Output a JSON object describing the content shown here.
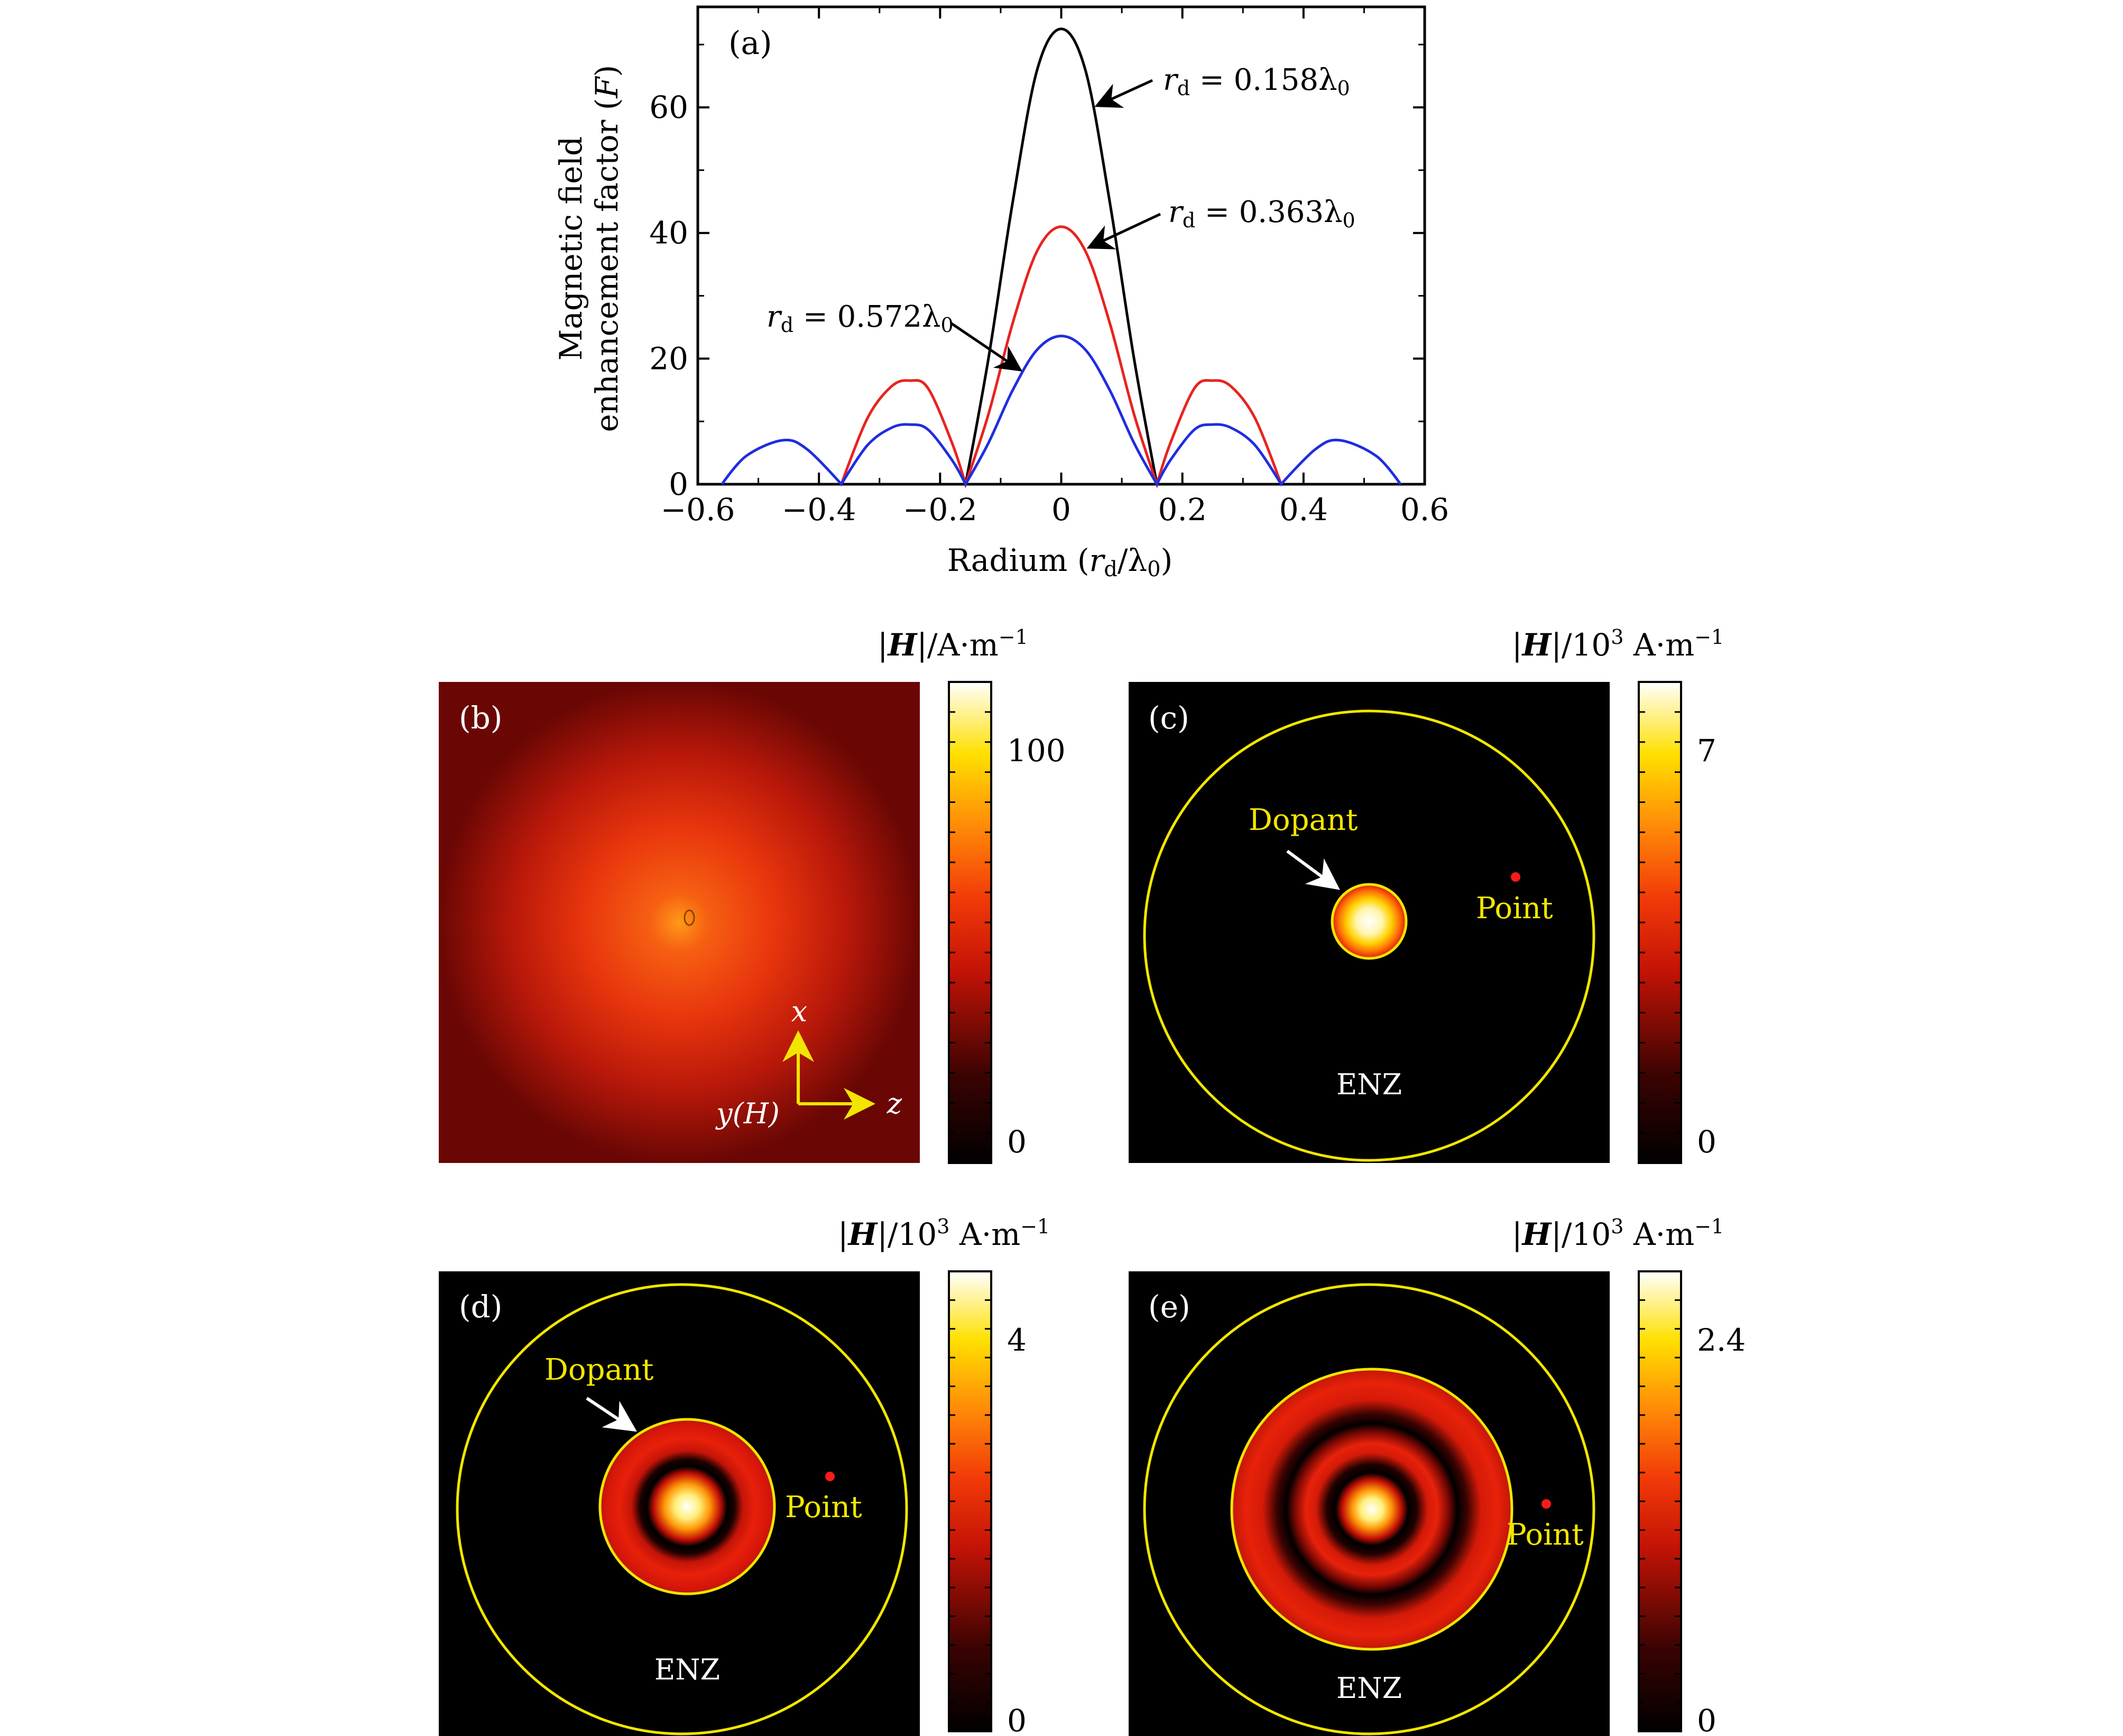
{
  "chart_data": [
    {
      "type": "line",
      "panel_label": "(a)",
      "xlabel": "Radium (r_d/λ0)",
      "ylabel_lines": [
        "Magnetic field",
        "enhancement factor (F)"
      ],
      "xlim": [
        -0.6,
        0.6
      ],
      "ylim": [
        0,
        76
      ],
      "xticks": [
        -0.6,
        -0.4,
        -0.2,
        0,
        0.2,
        0.4,
        0.6
      ],
      "xtick_labels": [
        "−0.6",
        "−0.4",
        "−0.2",
        "0",
        "0.2",
        "0.4",
        "0.6"
      ],
      "yticks": [
        0,
        20,
        40,
        60
      ],
      "ytick_labels": [
        "0",
        "20",
        "40",
        "60"
      ],
      "grid": false,
      "series": [
        {
          "name": "r_d = 0.158λ0",
          "color": "#000000",
          "x": [
            -0.158,
            -0.12,
            -0.08,
            -0.04,
            0,
            0.04,
            0.08,
            0.12,
            0.158
          ],
          "y": [
            0,
            20.1,
            45.0,
            65.9,
            72.5,
            65.9,
            45.0,
            20.1,
            0
          ]
        },
        {
          "name": "r_d = 0.363λ0",
          "color": "#e8231f",
          "x": [
            -0.363,
            -0.32,
            -0.28,
            -0.25,
            -0.22,
            -0.18,
            -0.158,
            -0.12,
            -0.08,
            -0.04,
            0,
            0.04,
            0.08,
            0.12,
            0.158,
            0.18,
            0.22,
            0.25,
            0.28,
            0.32,
            0.363
          ],
          "y": [
            0,
            10.5,
            15.6,
            16.5,
            15.3,
            6.5,
            0,
            11.2,
            25.7,
            37.1,
            41.0,
            37.1,
            25.7,
            11.2,
            0,
            6.5,
            15.3,
            16.5,
            15.6,
            10.5,
            0
          ]
        },
        {
          "name": "r_d = 0.572λ0",
          "color": "#1f2de0",
          "x": [
            -0.56,
            -0.52,
            -0.46,
            -0.42,
            -0.363,
            -0.32,
            -0.28,
            -0.25,
            -0.22,
            -0.18,
            -0.158,
            -0.12,
            -0.08,
            -0.04,
            0,
            0.04,
            0.08,
            0.12,
            0.158,
            0.18,
            0.22,
            0.25,
            0.28,
            0.32,
            0.363,
            0.42,
            0.46,
            0.52,
            0.56
          ],
          "y": [
            0,
            4.5,
            7.0,
            5.6,
            0,
            6.2,
            9.0,
            9.5,
            8.7,
            3.8,
            0,
            6.6,
            15.0,
            21.4,
            23.6,
            21.4,
            15.0,
            6.6,
            0,
            3.8,
            8.7,
            9.5,
            9.0,
            6.2,
            0,
            5.6,
            7.0,
            4.5,
            0
          ]
        }
      ],
      "annotations": [
        {
          "text_main": "r",
          "text_sub": "d",
          "text_rest": " = 0.158λ",
          "text_sub2": "0",
          "series": 0
        },
        {
          "text_main": "r",
          "text_sub": "d",
          "text_rest": " = 0.363λ",
          "text_sub2": "0",
          "series": 1
        },
        {
          "text_main": "r",
          "text_sub": "d",
          "text_rest": " = 0.572λ",
          "text_sub2": "0",
          "series": 2
        }
      ]
    },
    {
      "type": "heatmap",
      "panel_label": "(b)",
      "colorbar_label": "|H|/A·m⁻¹",
      "colorbar_ticks": [
        "100",
        "0"
      ],
      "axes_labels": {
        "x": "x",
        "z": "z",
        "y": "y(H)"
      }
    },
    {
      "type": "heatmap",
      "panel_label": "(c)",
      "colorbar_label": "|H|/10³ A·m⁻¹",
      "colorbar_ticks": [
        "7",
        "0"
      ],
      "labels": {
        "dopant": "Dopant",
        "point": "Point",
        "enz": "ENZ"
      }
    },
    {
      "type": "heatmap",
      "panel_label": "(d)",
      "colorbar_label": "|H|/10³ A·m⁻¹",
      "colorbar_ticks": [
        "4",
        "0"
      ],
      "labels": {
        "dopant": "Dopant",
        "point": "Point",
        "enz": "ENZ"
      }
    },
    {
      "type": "heatmap",
      "panel_label": "(e)",
      "colorbar_label": "|H|/10³ A·m⁻¹",
      "colorbar_ticks": [
        "2.4",
        "0"
      ],
      "labels": {
        "point": "Point",
        "enz": "ENZ"
      }
    }
  ],
  "colors": {
    "hot_dark": "#000000",
    "hot_red": "#e61a08",
    "hot_yellow": "#ffe600",
    "hot_white": "#ffffff",
    "ring_yellow": "#f2e600",
    "annotation_yellow": "#f2e600",
    "arrow_white": "#ffffff",
    "point_red": "#ff1a1a"
  }
}
